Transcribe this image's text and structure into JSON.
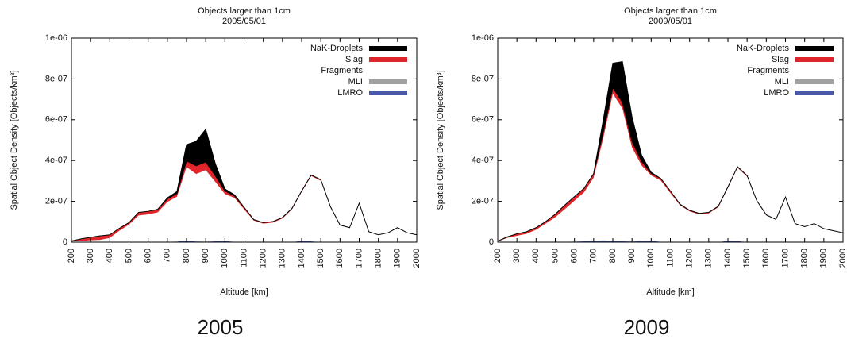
{
  "chart_data": [
    {
      "type": "stacked_area",
      "title": "Objects larger than 1cm",
      "subtitle": "2005/05/01",
      "caption": "2005",
      "x_label": "Altitude [km]",
      "y_label": "Spatial Object Density [Objects/km³]",
      "legend": "upper right",
      "grid": false,
      "x": [
        200,
        250,
        300,
        350,
        400,
        450,
        500,
        550,
        600,
        650,
        700,
        750,
        800,
        850,
        900,
        950,
        1000,
        1050,
        1100,
        1150,
        1200,
        1250,
        1300,
        1350,
        1400,
        1450,
        1500,
        1550,
        1600,
        1650,
        1700,
        1750,
        1800,
        1850,
        1900,
        1950,
        2000
      ],
      "xlim": [
        200,
        2000
      ],
      "xticks": [
        200,
        300,
        400,
        500,
        600,
        700,
        800,
        900,
        1000,
        1100,
        1200,
        1300,
        1400,
        1500,
        1600,
        1700,
        1800,
        1900,
        2000
      ],
      "ylim": [
        0,
        1e-06
      ],
      "yticks": [
        0,
        {
          "value": 2e-07,
          "label": "2e-07"
        },
        {
          "value": 4e-07,
          "label": "4e-07"
        },
        {
          "value": 6e-07,
          "label": "6e-07"
        },
        {
          "value": 8e-07,
          "label": "8e-07"
        },
        {
          "value": 1e-06,
          "label": "1e-06"
        }
      ],
      "series": [
        {
          "name": "LMRO",
          "color": "#4a5aa8",
          "values": [
            1e-09,
            1e-09,
            1e-09,
            1e-09,
            1e-09,
            1e-09,
            1e-09,
            1e-09,
            1e-09,
            1e-09,
            2e-09,
            3e-09,
            7e-09,
            3e-09,
            2e-09,
            4e-09,
            5e-09,
            2e-09,
            1e-09,
            1e-09,
            1e-09,
            1e-09,
            1e-09,
            1e-09,
            6e-09,
            4e-09,
            1e-09,
            1e-09,
            1e-09,
            1e-09,
            1e-09,
            1e-09,
            1e-09,
            1e-09,
            1e-09,
            1e-09,
            1e-09
          ]
        },
        {
          "name": "MLI",
          "color": "#a0a0a0",
          "values": [
            0,
            0,
            0,
            0,
            0,
            0,
            0,
            0,
            0,
            0,
            0,
            0,
            1e-09,
            1e-09,
            1e-09,
            1e-09,
            1e-09,
            0,
            0,
            0,
            0,
            0,
            0,
            0,
            0,
            0,
            0,
            0,
            0,
            0,
            0,
            0,
            0,
            0,
            0,
            0,
            0
          ]
        },
        {
          "name": "Fragments",
          "color": "#ffffff",
          "values": [
            2e-09,
            5e-09,
            8e-09,
            1e-08,
            2e-08,
            5.5e-08,
            8.5e-08,
            1.3e-07,
            1.35e-07,
            1.45e-07,
            1.95e-07,
            2.2e-07,
            3.6e-07,
            3.3e-07,
            3.5e-07,
            2.9e-07,
            2.3e-07,
            2.15e-07,
            1.6e-07,
            1.05e-07,
            9e-08,
            9.5e-08,
            1.15e-07,
            1.6e-07,
            2.4e-07,
            3.2e-07,
            3e-07,
            1.7e-07,
            8e-08,
            7e-08,
            1.9e-07,
            5e-08,
            3.5e-08,
            4.5e-08,
            7e-08,
            4.5e-08,
            3.5e-08
          ]
        },
        {
          "name": "Slag",
          "color": "#e0262a",
          "values": [
            3e-09,
            1e-08,
            1.5e-08,
            2e-08,
            1.5e-08,
            1.2e-08,
            1e-08,
            1.5e-08,
            1.5e-08,
            1.5e-08,
            1.5e-08,
            1.5e-08,
            3e-08,
            4e-08,
            4e-08,
            3e-08,
            1.5e-08,
            1e-08,
            1e-08,
            5e-09,
            5e-09,
            5e-09,
            5e-09,
            5e-09,
            5e-09,
            5e-09,
            5e-09,
            3e-09,
            3e-09,
            0,
            0,
            0,
            0,
            0,
            0,
            0,
            0
          ]
        },
        {
          "name": "NaK-Droplets",
          "color": "#000000",
          "values": [
            0,
            0,
            0,
            0,
            0,
            0,
            0,
            0,
            0,
            0,
            5e-09,
            1e-08,
            8e-08,
            1.2e-07,
            1.6e-07,
            6e-08,
            1e-08,
            5e-09,
            0,
            0,
            0,
            0,
            0,
            0,
            0,
            0,
            0,
            0,
            0,
            0,
            0,
            0,
            0,
            0,
            0,
            0,
            0
          ]
        }
      ]
    },
    {
      "type": "stacked_area",
      "title": "Objects larger than 1cm",
      "subtitle": "2009/05/01",
      "caption": "2009",
      "x_label": "Altitude [km]",
      "y_label": "Spatial Object Density [Objects/km³]",
      "legend": "upper right",
      "grid": false,
      "x": [
        200,
        250,
        300,
        350,
        400,
        450,
        500,
        550,
        600,
        650,
        700,
        750,
        800,
        850,
        900,
        950,
        1000,
        1050,
        1100,
        1150,
        1200,
        1250,
        1300,
        1350,
        1400,
        1450,
        1500,
        1550,
        1600,
        1650,
        1700,
        1750,
        1800,
        1850,
        1900,
        1950,
        2000
      ],
      "xlim": [
        200,
        2000
      ],
      "xticks": [
        200,
        300,
        400,
        500,
        600,
        700,
        800,
        900,
        1000,
        1100,
        1200,
        1300,
        1400,
        1500,
        1600,
        1700,
        1800,
        1900,
        2000
      ],
      "ylim": [
        0,
        1e-06
      ],
      "yticks": [
        0,
        {
          "value": 2e-07,
          "label": "2e-07"
        },
        {
          "value": 4e-07,
          "label": "4e-07"
        },
        {
          "value": 6e-07,
          "label": "6e-07"
        },
        {
          "value": 8e-07,
          "label": "8e-07"
        },
        {
          "value": 1e-06,
          "label": "1e-06"
        }
      ],
      "series": [
        {
          "name": "LMRO",
          "color": "#4a5aa8",
          "values": [
            1e-09,
            1e-09,
            1e-09,
            1e-09,
            1e-09,
            1e-09,
            2e-09,
            2e-09,
            3e-09,
            4e-09,
            5e-09,
            8e-09,
            6e-09,
            4e-09,
            3e-09,
            5e-09,
            6e-09,
            2e-09,
            1e-09,
            1e-09,
            1e-09,
            1e-09,
            1e-09,
            1e-09,
            6e-09,
            5e-09,
            1e-09,
            1e-09,
            1e-09,
            1e-09,
            1e-09,
            1e-09,
            1e-09,
            1e-09,
            1e-09,
            1e-09,
            1e-09
          ]
        },
        {
          "name": "MLI",
          "color": "#a0a0a0",
          "values": [
            0,
            0,
            0,
            0,
            0,
            0,
            0,
            0,
            0,
            0,
            1e-09,
            1e-09,
            1e-09,
            1e-09,
            1e-09,
            1e-09,
            1e-09,
            0,
            0,
            0,
            0,
            0,
            0,
            0,
            0,
            0,
            0,
            0,
            0,
            0,
            0,
            0,
            0,
            0,
            0,
            0,
            0
          ]
        },
        {
          "name": "Fragments",
          "color": "#ffffff",
          "values": [
            2e-09,
            2e-08,
            3e-08,
            4e-08,
            6e-08,
            9e-08,
            1.2e-07,
            1.6e-07,
            2e-07,
            2.4e-07,
            3.1e-07,
            5e-07,
            7.2e-07,
            6.5e-07,
            4.6e-07,
            3.7e-07,
            3.2e-07,
            3e-07,
            2.4e-07,
            1.8e-07,
            1.5e-07,
            1.35e-07,
            1.4e-07,
            1.7e-07,
            2.6e-07,
            3.6e-07,
            3.2e-07,
            2e-07,
            1.3e-07,
            1.1e-07,
            2.2e-07,
            9e-08,
            7.5e-08,
            9e-08,
            6.5e-08,
            5.5e-08,
            4.5e-08
          ]
        },
        {
          "name": "Slag",
          "color": "#e0262a",
          "values": [
            2e-09,
            5e-09,
            1e-08,
            1e-08,
            1e-08,
            1e-08,
            1.5e-08,
            2e-08,
            2e-08,
            2e-08,
            2e-08,
            3e-08,
            3e-08,
            3e-08,
            3e-08,
            2e-08,
            1e-08,
            1e-08,
            1e-08,
            5e-09,
            5e-09,
            5e-09,
            5e-09,
            5e-09,
            5e-09,
            5e-09,
            5e-09,
            3e-09,
            3e-09,
            0,
            0,
            0,
            0,
            0,
            0,
            0,
            0
          ]
        },
        {
          "name": "NaK-Droplets",
          "color": "#000000",
          "values": [
            0,
            0,
            0,
            0,
            0,
            0,
            0,
            0,
            0,
            0,
            0,
            6e-08,
            1.2e-07,
            2e-07,
            1.2e-07,
            3e-08,
            5e-09,
            0,
            0,
            0,
            0,
            0,
            0,
            0,
            0,
            0,
            0,
            0,
            0,
            0,
            0,
            0,
            0,
            0,
            0,
            0,
            0
          ]
        }
      ]
    }
  ]
}
